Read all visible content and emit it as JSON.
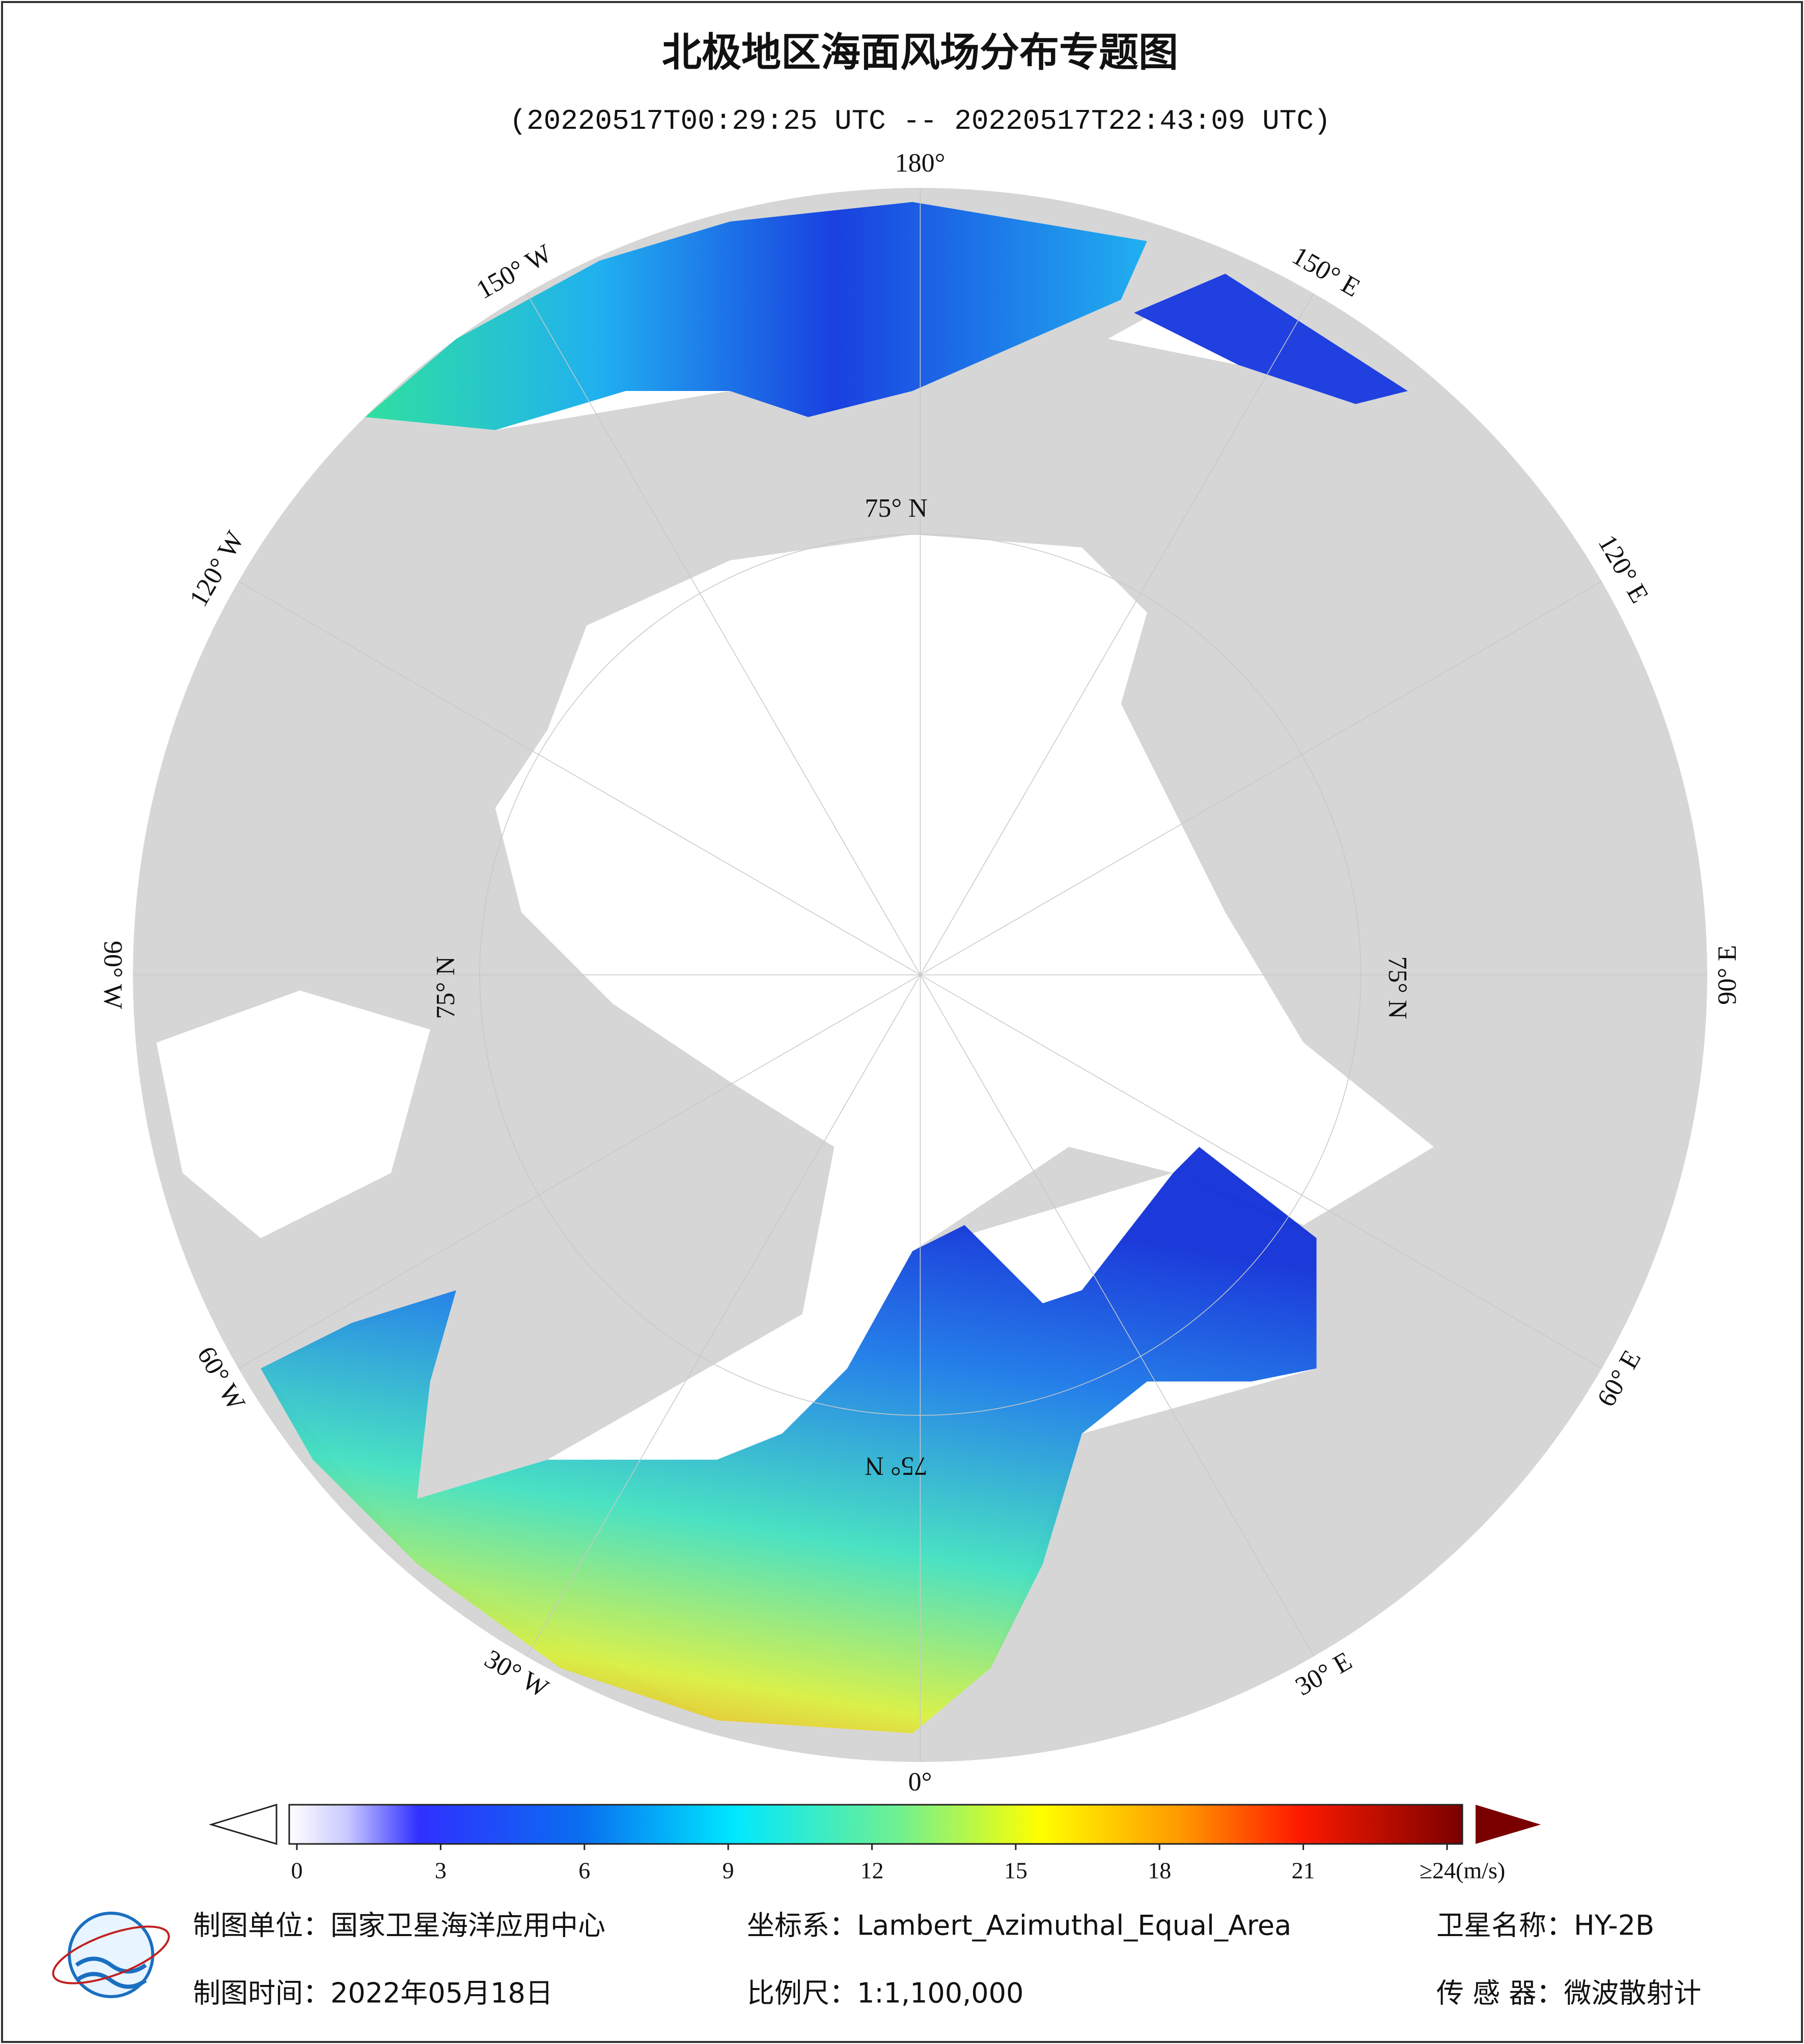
{
  "title": "北极地区海面风场分布专题图",
  "subtitle": "(20220517T00:29:25 UTC -- 20220517T22:43:09 UTC)",
  "map": {
    "longitude_labels": [
      "180°",
      "150° E",
      "120° E",
      "90° E",
      "60° E",
      "30° E",
      "0°",
      "30° W",
      "60° W",
      "90° W",
      "120° W",
      "150° W"
    ],
    "latitude_labels": [
      "75° N",
      "75° N",
      "75° N",
      "75° N"
    ]
  },
  "colorbar": {
    "lim": [
      0,
      24
    ],
    "ticks": [
      0,
      3,
      6,
      9,
      12,
      15,
      18,
      21,
      {
        "value": 24,
        "label": "≥24(m/s)"
      }
    ]
  },
  "footer": {
    "unit": "制图单位：国家卫星海洋应用中心",
    "projection": "坐标系：Lambert_Azimuthal_Equal_Area",
    "satellite": "卫星名称：HY-2B",
    "date": "制图时间：2022年05月18日",
    "scale": "比例尺：1:1,100,000",
    "sensor": "传 感 器：微波散射计"
  }
}
